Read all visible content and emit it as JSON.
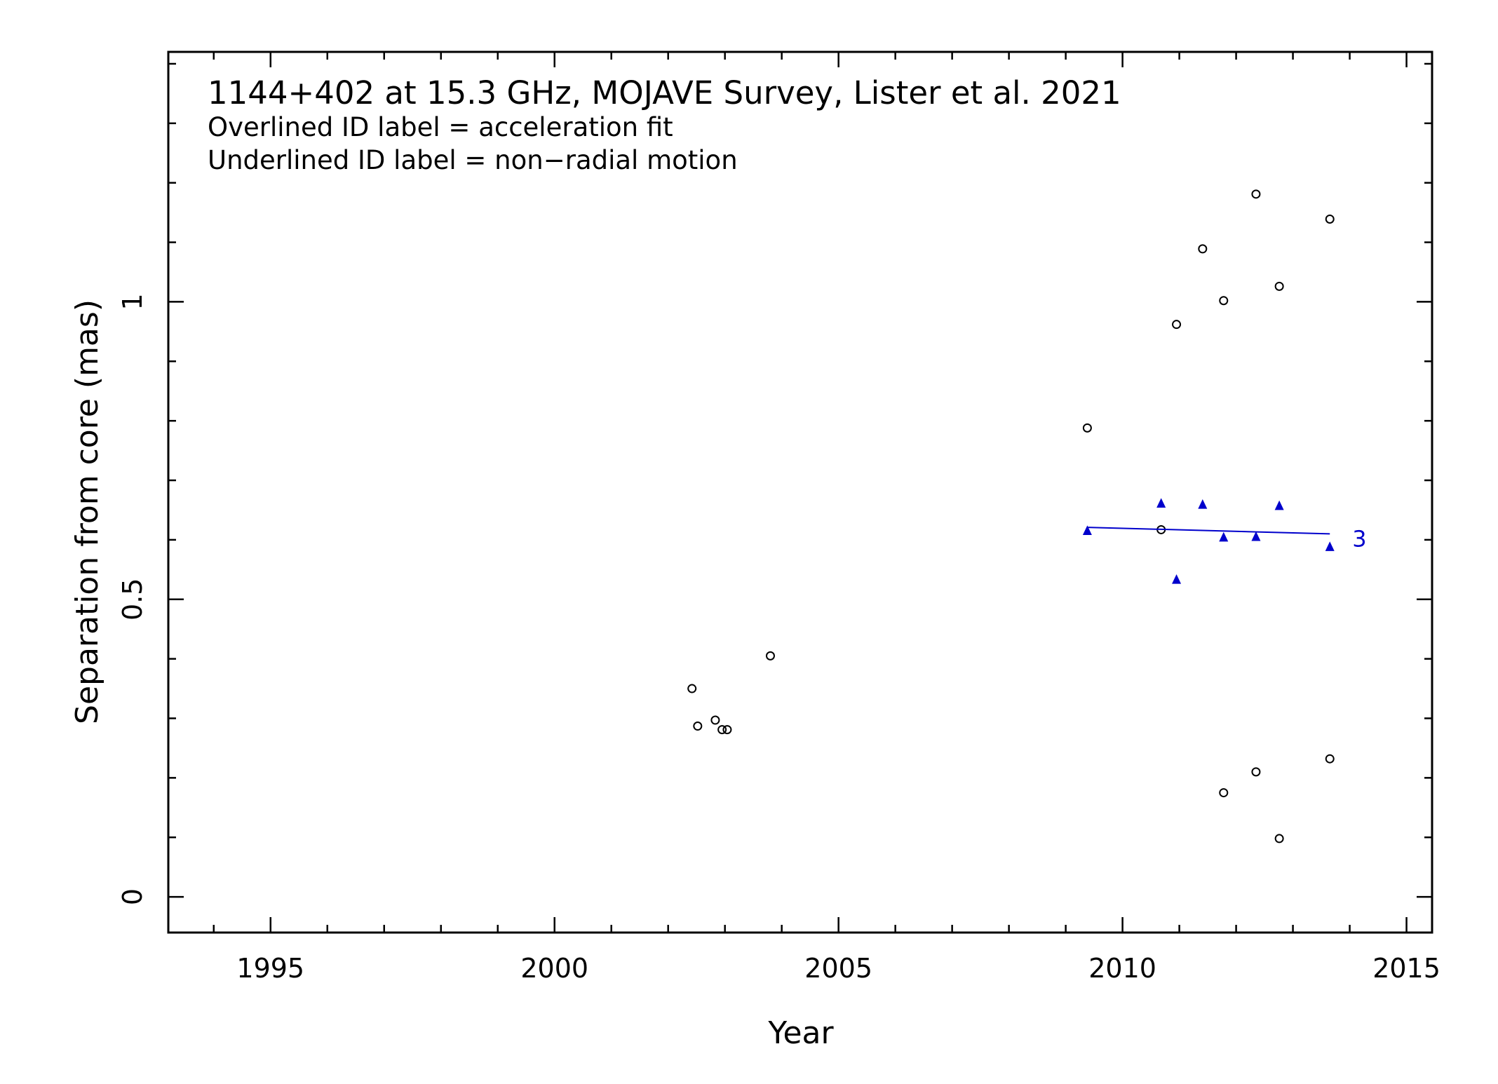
{
  "chart_data": {
    "type": "scatter",
    "title": "1144+402 at 15.3 GHz, MOJAVE Survey, Lister et al. 2021",
    "notes": [
      "Overlined ID label = acceleration fit",
      "Underlined ID label = non−radial motion"
    ],
    "xlabel": "Year",
    "ylabel": "Separation from core (mas)",
    "xlim": [
      1993.2,
      2015.45
    ],
    "ylim": [
      -0.06,
      1.42
    ],
    "x_ticks": [
      1995,
      2000,
      2005,
      2010,
      2015
    ],
    "x_tick_labels": [
      "1995",
      "2000",
      "2005",
      "2010",
      "2015"
    ],
    "x_minor_step": 1,
    "y_ticks": [
      0,
      0.5,
      1
    ],
    "y_tick_labels": [
      "0",
      "0.5",
      "1"
    ],
    "y_minor_step": 0.1,
    "grid": false,
    "colors": {
      "axes": "#000000",
      "component_3": "#0000cc"
    },
    "series": [
      {
        "marker": "open-circle",
        "color": "#000000",
        "points": [
          [
            2002.42,
            0.35
          ],
          [
            2002.52,
            0.287
          ],
          [
            2002.83,
            0.297
          ],
          [
            2002.95,
            0.281
          ],
          [
            2003.04,
            0.281
          ],
          [
            2003.8,
            0.405
          ],
          [
            2009.38,
            0.788
          ],
          [
            2010.68,
            0.617
          ],
          [
            2010.95,
            0.962
          ],
          [
            2011.41,
            1.089
          ],
          [
            2011.78,
            1.002
          ],
          [
            2012.35,
            1.181
          ],
          [
            2012.76,
            1.026
          ],
          [
            2013.65,
            1.139
          ],
          [
            2011.78,
            0.175
          ],
          [
            2012.35,
            0.21
          ],
          [
            2012.76,
            0.098
          ],
          [
            2013.65,
            0.232
          ]
        ]
      },
      {
        "name": "3",
        "marker": "filled-triangle",
        "color": "#0000cc",
        "points": [
          [
            2009.38,
            0.615
          ],
          [
            2010.68,
            0.661
          ],
          [
            2010.95,
            0.533
          ],
          [
            2011.41,
            0.659
          ],
          [
            2011.78,
            0.604
          ],
          [
            2012.35,
            0.605
          ],
          [
            2012.76,
            0.657
          ],
          [
            2013.65,
            0.588
          ]
        ],
        "fit_line": [
          [
            2009.38,
            0.621
          ],
          [
            2013.65,
            0.61
          ]
        ],
        "label": "3"
      }
    ]
  }
}
